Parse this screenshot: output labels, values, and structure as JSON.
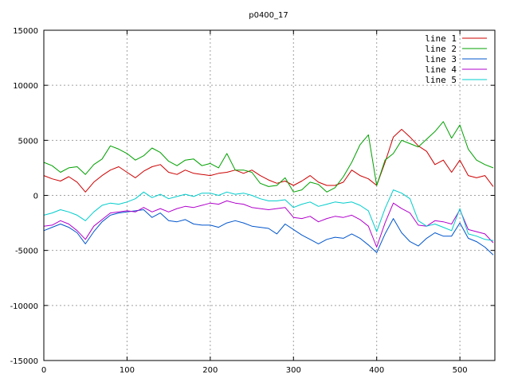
{
  "chart_data": {
    "type": "line",
    "title": "p0400_17",
    "xlim": [
      0,
      542
    ],
    "ylim": [
      -15000,
      15000
    ],
    "x_ticks": [
      0,
      100,
      200,
      300,
      400,
      500
    ],
    "y_ticks": [
      -15000,
      -10000,
      -5000,
      0,
      5000,
      10000,
      15000
    ],
    "grid": true,
    "legend_position": "top-right",
    "x": [
      0,
      10,
      20,
      30,
      40,
      50,
      60,
      70,
      80,
      90,
      100,
      110,
      120,
      130,
      140,
      150,
      160,
      170,
      180,
      190,
      200,
      210,
      220,
      230,
      240,
      250,
      260,
      270,
      280,
      290,
      300,
      310,
      320,
      330,
      340,
      350,
      360,
      370,
      380,
      390,
      400,
      410,
      420,
      430,
      440,
      450,
      460,
      470,
      480,
      490,
      500,
      510,
      520,
      530,
      540
    ],
    "series": [
      {
        "name": "line 1",
        "color": "#cc0000",
        "values": [
          1800,
          1500,
          1300,
          1700,
          1200,
          300,
          1200,
          1800,
          2300,
          2600,
          2100,
          1600,
          2200,
          2600,
          2800,
          2100,
          1900,
          2300,
          2000,
          1900,
          1800,
          2000,
          2100,
          2300,
          2000,
          2300,
          1800,
          1400,
          1100,
          1300,
          900,
          1300,
          1800,
          1200,
          900,
          900,
          1200,
          2300,
          1800,
          1500,
          900,
          3000,
          5300,
          6000,
          5300,
          4500,
          4000,
          2800,
          3200,
          2100,
          3200,
          1800,
          1600,
          1800,
          800
        ]
      },
      {
        "name": "line 2",
        "color": "#00a000",
        "values": [
          3000,
          2700,
          2100,
          2500,
          2600,
          1900,
          2800,
          3300,
          4500,
          4200,
          3800,
          3200,
          3600,
          4300,
          3900,
          3100,
          2700,
          3200,
          3300,
          2700,
          2900,
          2500,
          3800,
          2300,
          2300,
          2100,
          1100,
          800,
          900,
          1600,
          300,
          500,
          1200,
          1000,
          300,
          700,
          1700,
          3000,
          4600,
          5500,
          900,
          3200,
          3800,
          5000,
          4700,
          4400,
          5100,
          5800,
          6700,
          5200,
          6400,
          4200,
          3200,
          2800,
          2500
        ]
      },
      {
        "name": "line 3",
        "color": "#0055cc",
        "values": [
          -3200,
          -2900,
          -2600,
          -2900,
          -3400,
          -4400,
          -3300,
          -2400,
          -1800,
          -1600,
          -1500,
          -1400,
          -1300,
          -2000,
          -1600,
          -2300,
          -2400,
          -2200,
          -2600,
          -2700,
          -2700,
          -2900,
          -2500,
          -2300,
          -2500,
          -2800,
          -2900,
          -3000,
          -3500,
          -2600,
          -3100,
          -3600,
          -4000,
          -4400,
          -4000,
          -3800,
          -3900,
          -3500,
          -3900,
          -4500,
          -5200,
          -3500,
          -2100,
          -3400,
          -4200,
          -4600,
          -3900,
          -3400,
          -3700,
          -3700,
          -2500,
          -3900,
          -4200,
          -4700,
          -5400
        ]
      },
      {
        "name": "line 4",
        "color": "#b000cc",
        "values": [
          -2800,
          -2700,
          -2300,
          -2600,
          -3200,
          -4000,
          -2800,
          -2200,
          -1600,
          -1500,
          -1400,
          -1500,
          -1100,
          -1500,
          -1200,
          -1500,
          -1200,
          -1000,
          -1100,
          -900,
          -700,
          -800,
          -500,
          -700,
          -800,
          -1100,
          -1200,
          -1300,
          -1200,
          -1100,
          -2000,
          -2100,
          -1900,
          -2400,
          -2100,
          -1900,
          -2000,
          -1800,
          -2200,
          -2800,
          -4700,
          -2500,
          -700,
          -1200,
          -1600,
          -2700,
          -2800,
          -2300,
          -2400,
          -2600,
          -1300,
          -3100,
          -3300,
          -3500,
          -4300
        ]
      },
      {
        "name": "line 5",
        "color": "#00cccc",
        "values": [
          -1800,
          -1600,
          -1300,
          -1500,
          -1800,
          -2300,
          -1500,
          -900,
          -700,
          -800,
          -600,
          -300,
          300,
          -200,
          100,
          -300,
          -100,
          100,
          -100,
          200,
          200,
          0,
          300,
          100,
          200,
          0,
          -300,
          -500,
          -500,
          -400,
          -1100,
          -800,
          -600,
          -1000,
          -800,
          -600,
          -700,
          -600,
          -900,
          -1400,
          -3300,
          -1200,
          500,
          200,
          -300,
          -2300,
          -2800,
          -2600,
          -2900,
          -3200,
          -1200,
          -3500,
          -3700,
          -4000,
          -4100
        ]
      }
    ]
  }
}
